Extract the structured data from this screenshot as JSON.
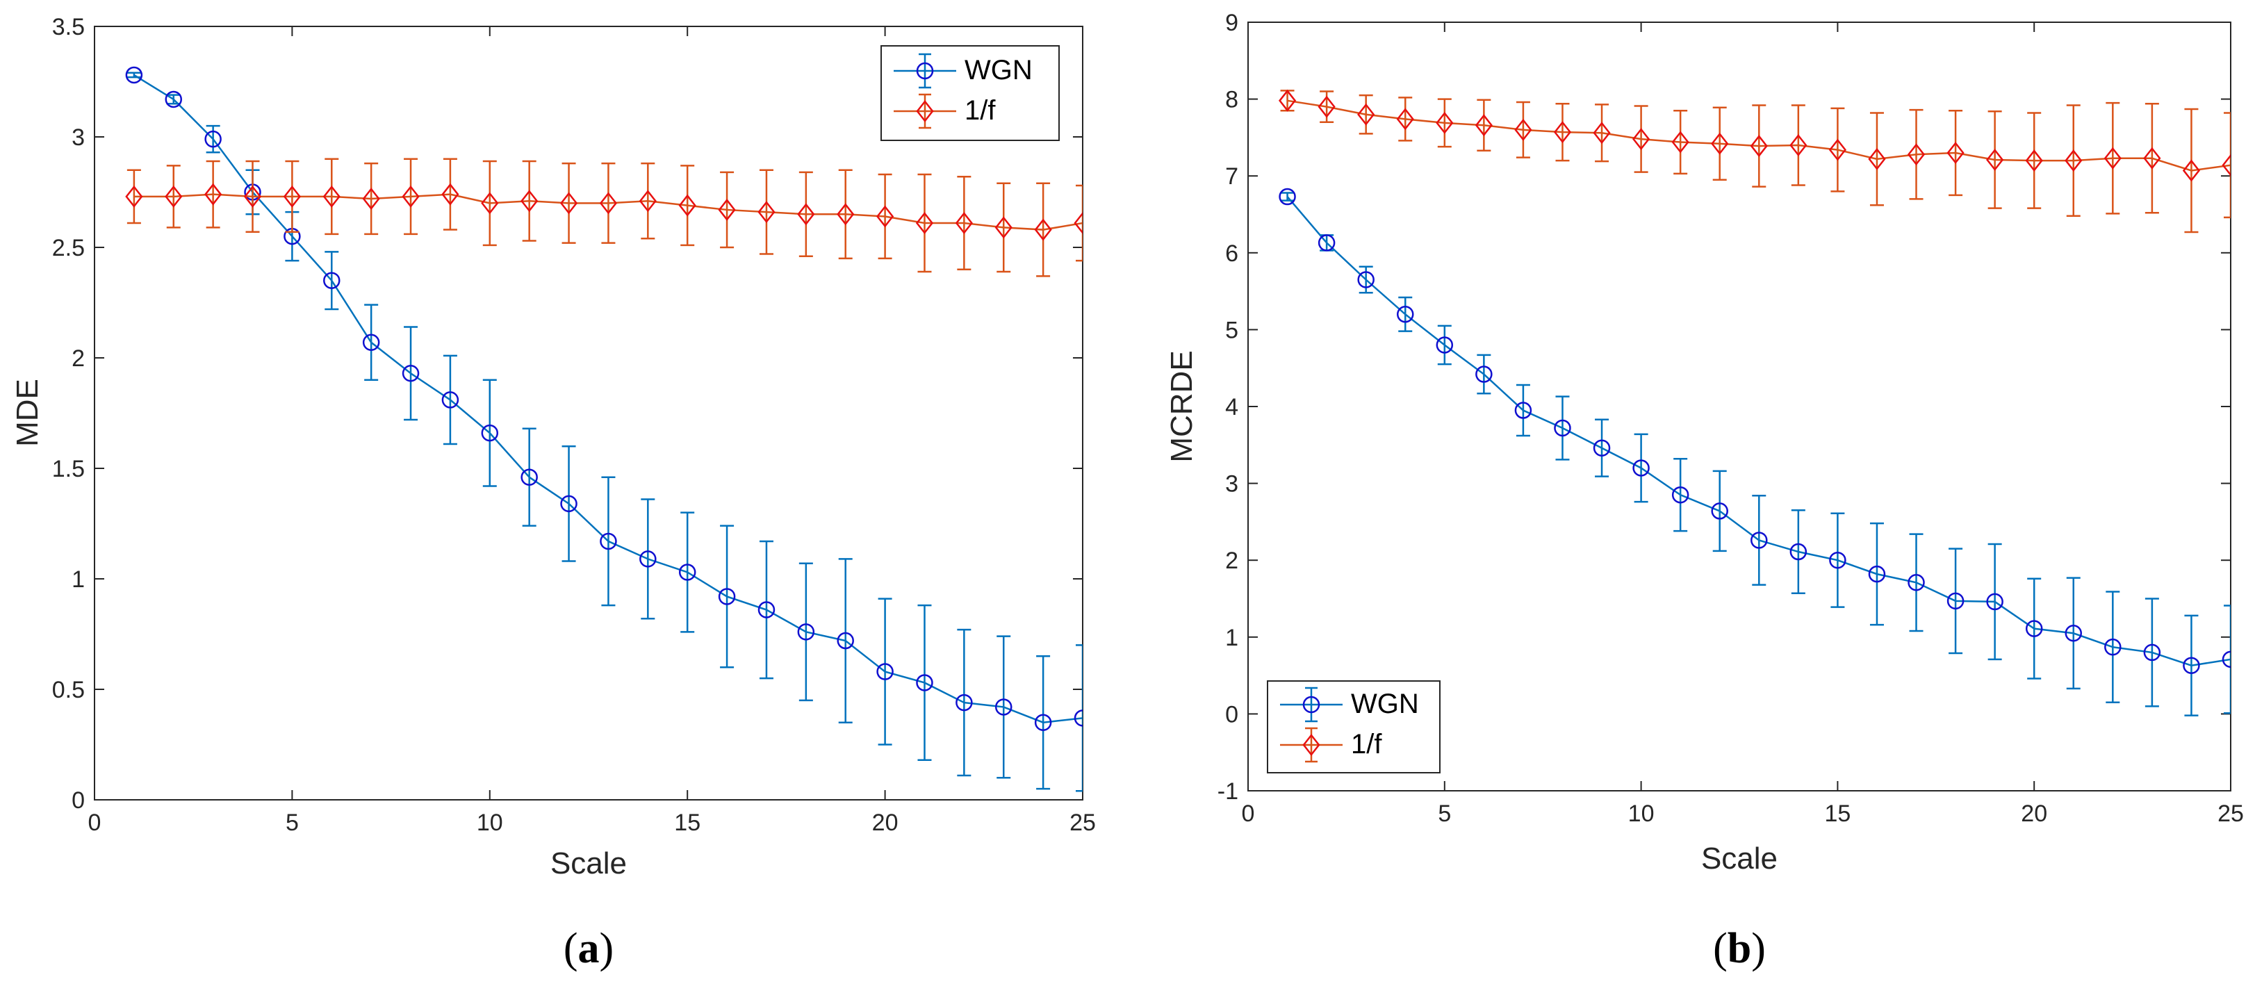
{
  "chart_data": [
    {
      "type": "line",
      "panel_label": "a",
      "xlabel": "Scale",
      "ylabel": "MDE",
      "xlim": [
        0,
        25
      ],
      "ylim": [
        0,
        3.5
      ],
      "xticks": [
        "0",
        "5",
        "10",
        "15",
        "20",
        "25"
      ],
      "yticks": [
        "0",
        "0.5",
        "1",
        "1.5",
        "2",
        "2.5",
        "3",
        "3.5"
      ],
      "legend_position": "top-right",
      "x": [
        1,
        2,
        3,
        4,
        5,
        6,
        7,
        8,
        9,
        10,
        11,
        12,
        13,
        14,
        15,
        16,
        17,
        18,
        19,
        20,
        21,
        22,
        23,
        24,
        25
      ],
      "series": [
        {
          "name": "WGN",
          "color": "#0072bd",
          "marker": "circle",
          "values": [
            3.28,
            3.17,
            2.99,
            2.75,
            2.55,
            2.35,
            2.07,
            1.93,
            1.81,
            1.66,
            1.46,
            1.34,
            1.17,
            1.09,
            1.03,
            0.92,
            0.86,
            0.76,
            0.72,
            0.58,
            0.53,
            0.44,
            0.42,
            0.35,
            0.37
          ],
          "errors": [
            0.01,
            0.02,
            0.06,
            0.1,
            0.11,
            0.13,
            0.17,
            0.21,
            0.2,
            0.24,
            0.22,
            0.26,
            0.29,
            0.27,
            0.27,
            0.32,
            0.31,
            0.31,
            0.37,
            0.33,
            0.35,
            0.33,
            0.32,
            0.3,
            0.33
          ]
        },
        {
          "name": "1/f",
          "color": "#d95319",
          "marker": "diamond",
          "values": [
            2.73,
            2.73,
            2.74,
            2.73,
            2.73,
            2.73,
            2.72,
            2.73,
            2.74,
            2.7,
            2.71,
            2.7,
            2.7,
            2.71,
            2.69,
            2.67,
            2.66,
            2.65,
            2.65,
            2.64,
            2.61,
            2.61,
            2.59,
            2.58,
            2.61
          ],
          "errors": [
            0.12,
            0.14,
            0.15,
            0.16,
            0.16,
            0.17,
            0.16,
            0.17,
            0.16,
            0.19,
            0.18,
            0.18,
            0.18,
            0.17,
            0.18,
            0.17,
            0.19,
            0.19,
            0.2,
            0.19,
            0.22,
            0.21,
            0.2,
            0.21,
            0.17
          ]
        }
      ]
    },
    {
      "type": "line",
      "panel_label": "b",
      "xlabel": "Scale",
      "ylabel": "MCRDE",
      "xlim": [
        0,
        25
      ],
      "ylim": [
        -1,
        9
      ],
      "xticks": [
        "0",
        "5",
        "10",
        "15",
        "20",
        "25"
      ],
      "yticks": [
        "-1",
        "0",
        "1",
        "2",
        "3",
        "4",
        "5",
        "6",
        "7",
        "8",
        "9"
      ],
      "legend_position": "bottom-left",
      "x": [
        1,
        2,
        3,
        4,
        5,
        6,
        7,
        8,
        9,
        10,
        11,
        12,
        13,
        14,
        15,
        16,
        17,
        18,
        19,
        20,
        21,
        22,
        23,
        24,
        25
      ],
      "series": [
        {
          "name": "WGN",
          "color": "#0072bd",
          "marker": "circle",
          "values": [
            6.73,
            6.13,
            5.65,
            5.2,
            4.8,
            4.42,
            3.95,
            3.72,
            3.46,
            3.2,
            2.85,
            2.64,
            2.26,
            2.11,
            2.0,
            1.82,
            1.71,
            1.47,
            1.46,
            1.11,
            1.05,
            0.87,
            0.8,
            0.63,
            0.71
          ],
          "errors": [
            0.05,
            0.1,
            0.17,
            0.22,
            0.25,
            0.25,
            0.33,
            0.41,
            0.37,
            0.44,
            0.47,
            0.52,
            0.58,
            0.54,
            0.61,
            0.66,
            0.63,
            0.68,
            0.75,
            0.65,
            0.72,
            0.72,
            0.7,
            0.65,
            0.7
          ]
        },
        {
          "name": "1/f",
          "color": "#d95319",
          "marker": "diamond",
          "values": [
            7.98,
            7.9,
            7.8,
            7.74,
            7.69,
            7.66,
            7.6,
            7.57,
            7.56,
            7.48,
            7.44,
            7.42,
            7.39,
            7.4,
            7.34,
            7.22,
            7.28,
            7.3,
            7.21,
            7.2,
            7.2,
            7.23,
            7.23,
            7.07,
            7.14
          ],
          "errors": [
            0.13,
            0.2,
            0.25,
            0.28,
            0.31,
            0.33,
            0.36,
            0.37,
            0.37,
            0.43,
            0.41,
            0.47,
            0.53,
            0.52,
            0.54,
            0.6,
            0.58,
            0.55,
            0.63,
            0.62,
            0.72,
            0.72,
            0.71,
            0.8,
            0.68
          ]
        }
      ]
    }
  ]
}
